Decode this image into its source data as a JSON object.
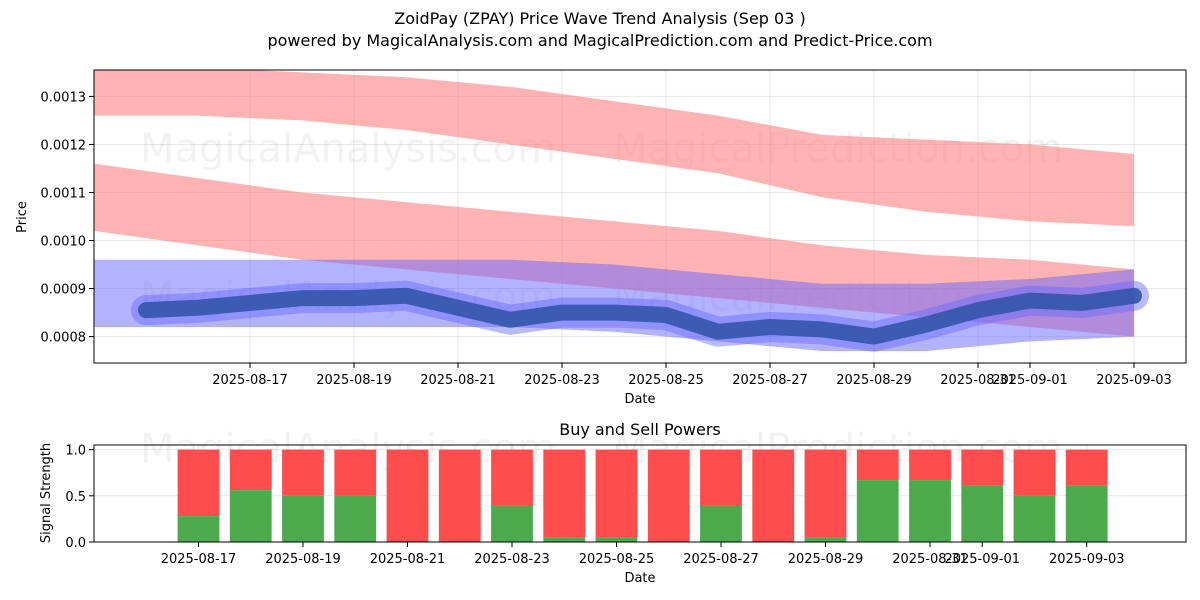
{
  "title": "ZoidPay (ZPAY) Price Wave Trend Analysis (Sep 03 )",
  "subtitle": "powered by MagicalAnalysis.com and MagicalPrediction.com and Predict-Price.com",
  "watermarks": [
    "MagicalAnalysis.com",
    "MagicalPrediction.com"
  ],
  "colors": {
    "sell_band": "#ff8080",
    "buy_band": "#6666ff",
    "price_line": "#3355aa",
    "buy_bar": "#4caa4c",
    "sell_bar": "#ff4d4d"
  },
  "chart_data": [
    {
      "type": "area",
      "title": "",
      "xlabel": "Date",
      "ylabel": "Price",
      "x_ticks": [
        "2025-08-17",
        "2025-08-19",
        "2025-08-21",
        "2025-08-23",
        "2025-08-25",
        "2025-08-27",
        "2025-08-29",
        "2025-08-31",
        "2025-09-01",
        "2025-09-03"
      ],
      "y_ticks": [
        "0.0008",
        "0.0009",
        "0.0010",
        "0.0011",
        "0.0012",
        "0.0013"
      ],
      "xlim": [
        "2025-08-14",
        "2025-09-04"
      ],
      "ylim": [
        0.000745,
        0.001355
      ],
      "grid": true,
      "series": [
        {
          "kind": "band",
          "role": "upper-red",
          "x": [
            "2025-08-14",
            "2025-08-16",
            "2025-08-18",
            "2025-08-20",
            "2025-08-22",
            "2025-08-24",
            "2025-08-26",
            "2025-08-28",
            "2025-08-30",
            "2025-09-01",
            "2025-09-03"
          ],
          "upper": [
            0.00138,
            0.00136,
            0.00135,
            0.00134,
            0.00132,
            0.00129,
            0.00126,
            0.00122,
            0.00121,
            0.0012,
            0.00118
          ],
          "lower": [
            0.00126,
            0.00126,
            0.00125,
            0.00123,
            0.0012,
            0.00117,
            0.00114,
            0.00109,
            0.00106,
            0.00104,
            0.00103
          ]
        },
        {
          "kind": "band",
          "role": "middle-red",
          "x": [
            "2025-08-14",
            "2025-08-16",
            "2025-08-18",
            "2025-08-20",
            "2025-08-22",
            "2025-08-24",
            "2025-08-26",
            "2025-08-28",
            "2025-08-30",
            "2025-09-01",
            "2025-09-03"
          ],
          "upper": [
            0.00116,
            0.00113,
            0.0011,
            0.00108,
            0.00106,
            0.00104,
            0.00102,
            0.00099,
            0.00097,
            0.00096,
            0.00094
          ],
          "lower": [
            0.00102,
            0.00099,
            0.00096,
            0.00094,
            0.00092,
            0.0009,
            0.00088,
            0.00086,
            0.00084,
            0.00082,
            0.0008
          ]
        },
        {
          "kind": "band",
          "role": "blue",
          "x": [
            "2025-08-14",
            "2025-08-16",
            "2025-08-18",
            "2025-08-20",
            "2025-08-22",
            "2025-08-24",
            "2025-08-26",
            "2025-08-28",
            "2025-08-30",
            "2025-09-01",
            "2025-09-03"
          ],
          "upper": [
            0.00096,
            0.00096,
            0.00096,
            0.00096,
            0.00096,
            0.00095,
            0.00093,
            0.00091,
            0.00091,
            0.00092,
            0.00094
          ],
          "lower": [
            0.00082,
            0.00082,
            0.00082,
            0.00082,
            0.00082,
            0.00081,
            0.00079,
            0.00077,
            0.00077,
            0.00079,
            0.0008
          ]
        },
        {
          "kind": "line",
          "role": "price",
          "x": [
            "2025-08-15",
            "2025-08-16",
            "2025-08-17",
            "2025-08-18",
            "2025-08-19",
            "2025-08-20",
            "2025-08-21",
            "2025-08-22",
            "2025-08-23",
            "2025-08-24",
            "2025-08-25",
            "2025-08-26",
            "2025-08-27",
            "2025-08-28",
            "2025-08-29",
            "2025-08-30",
            "2025-08-31",
            "2025-09-01",
            "2025-09-02",
            "2025-09-03"
          ],
          "y": [
            0.000855,
            0.00086,
            0.00087,
            0.00088,
            0.00088,
            0.000885,
            0.00086,
            0.000835,
            0.00085,
            0.00085,
            0.000845,
            0.00081,
            0.00082,
            0.000815,
            0.0008,
            0.000825,
            0.000855,
            0.000875,
            0.00087,
            0.000885
          ]
        }
      ]
    },
    {
      "type": "bar",
      "title": "Buy and Sell Powers",
      "xlabel": "Date",
      "ylabel": "Signal Strength",
      "x_ticks": [
        "2025-08-17",
        "2025-08-19",
        "2025-08-21",
        "2025-08-23",
        "2025-08-25",
        "2025-08-27",
        "2025-08-29",
        "2025-08-31",
        "2025-09-01",
        "2025-09-03"
      ],
      "y_ticks": [
        "0.0",
        "0.5",
        "1.0"
      ],
      "ylim": [
        0,
        1.05
      ],
      "grid": true,
      "categories": [
        "2025-08-17",
        "2025-08-18",
        "2025-08-19",
        "2025-08-20",
        "2025-08-21",
        "2025-08-22",
        "2025-08-23",
        "2025-08-24",
        "2025-08-25",
        "2025-08-26",
        "2025-08-27",
        "2025-08-28",
        "2025-08-29",
        "2025-08-30",
        "2025-08-31",
        "2025-09-01",
        "2025-09-02",
        "2025-09-03"
      ],
      "series": [
        {
          "role": "buy",
          "values": [
            0.28,
            0.56,
            0.5,
            0.5,
            0.0,
            0.0,
            0.4,
            0.05,
            0.05,
            0.0,
            0.4,
            0.0,
            0.05,
            0.67,
            0.67,
            0.61,
            0.5,
            0.61
          ]
        },
        {
          "role": "sell",
          "values": [
            0.72,
            0.44,
            0.5,
            0.5,
            1.0,
            1.0,
            0.6,
            0.95,
            0.95,
            1.0,
            0.6,
            1.0,
            0.95,
            0.33,
            0.33,
            0.39,
            0.5,
            0.39
          ]
        }
      ]
    }
  ]
}
